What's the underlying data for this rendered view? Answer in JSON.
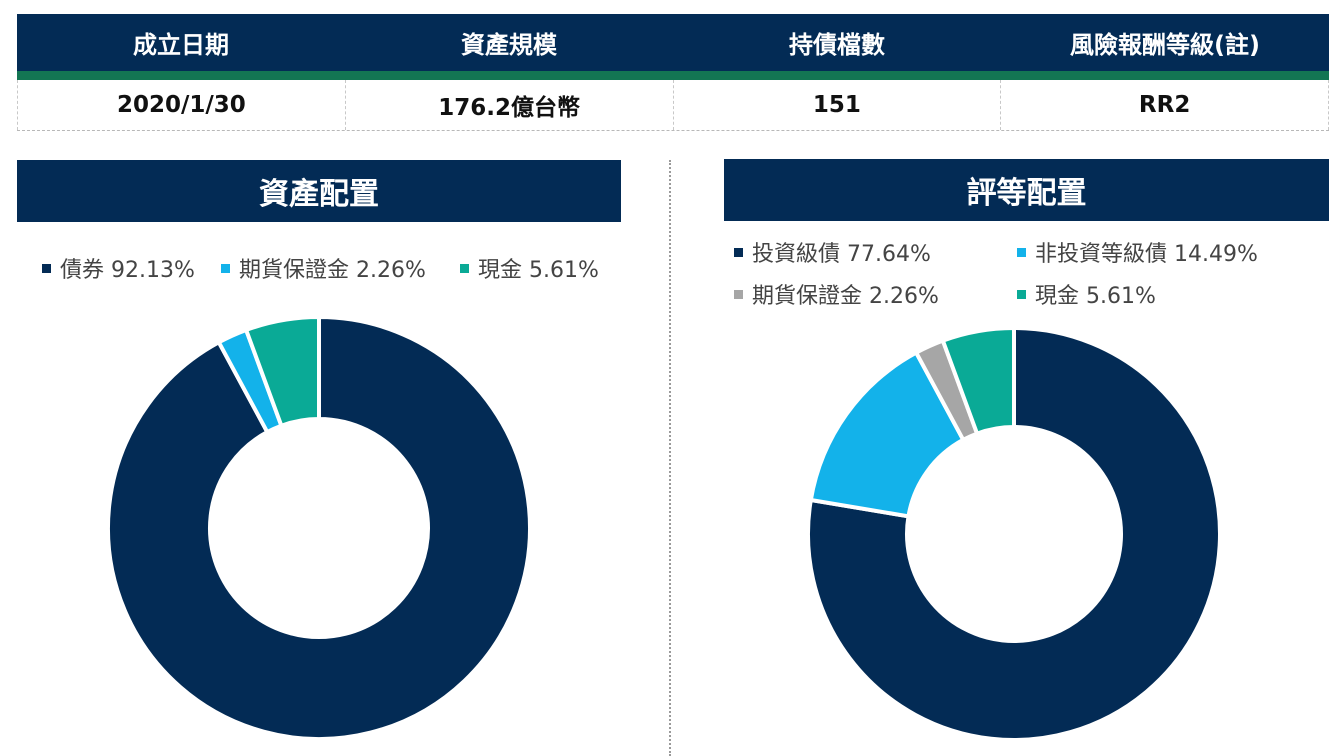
{
  "info": {
    "headers": [
      "成立日期",
      "資產規模",
      "持債檔數",
      "風險報酬等級(註)"
    ],
    "values": [
      "2020/1/30",
      "176.2億台幣",
      "151",
      "RR2"
    ]
  },
  "colors": {
    "navy": "#032b55",
    "green_stripe": "#137553",
    "light_blue": "#13b2ea",
    "teal": "#0aaa96",
    "gray": "#a6a6a6"
  },
  "chart_data": [
    {
      "type": "pie",
      "donut": true,
      "title": "資產配置",
      "legend_position": "top",
      "legend_labels": [
        "債券 92.13%",
        "期貨保證金 2.26%",
        "現金 5.61%"
      ],
      "slices": [
        {
          "label": "債券",
          "value": 92.13,
          "color": "#032b55"
        },
        {
          "label": "期貨保證金",
          "value": 2.26,
          "color": "#13b2ea"
        },
        {
          "label": "現金",
          "value": 5.61,
          "color": "#0aaa96"
        }
      ]
    },
    {
      "type": "pie",
      "donut": true,
      "title": "評等配置",
      "legend_position": "top",
      "legend_labels": [
        "投資級債 77.64%",
        "非投資等級債 14.49%",
        "期貨保證金 2.26%",
        "現金 5.61%"
      ],
      "slices": [
        {
          "label": "投資級債",
          "value": 77.64,
          "color": "#032b55"
        },
        {
          "label": "非投資等級債",
          "value": 14.49,
          "color": "#13b2ea"
        },
        {
          "label": "期貨保證金",
          "value": 2.26,
          "color": "#a6a6a6"
        },
        {
          "label": "現金",
          "value": 5.61,
          "color": "#0aaa96"
        }
      ]
    }
  ]
}
